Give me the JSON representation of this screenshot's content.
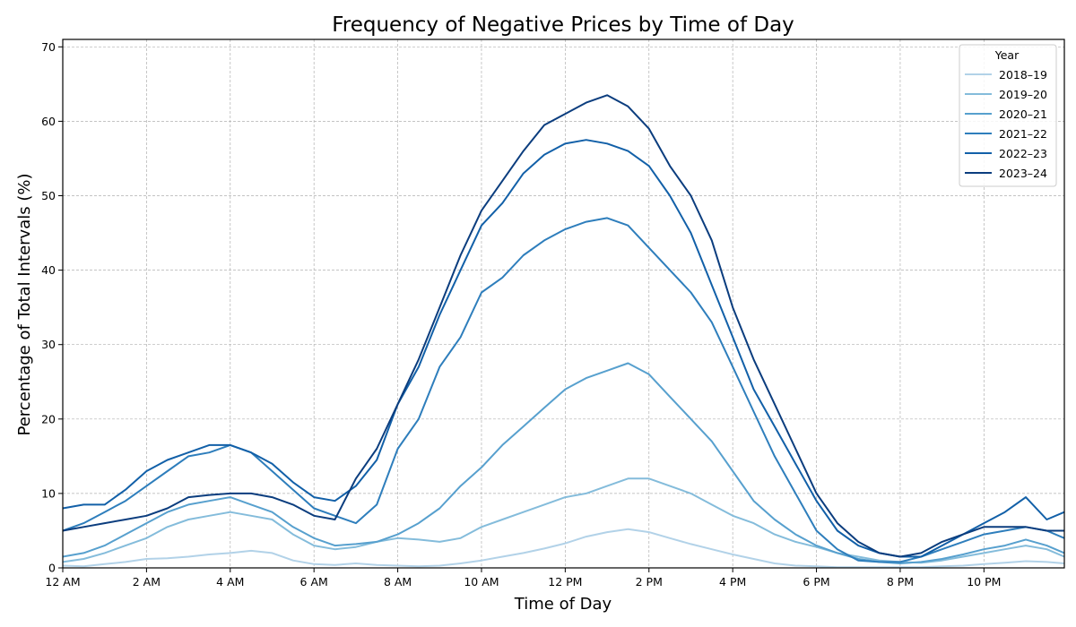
{
  "chart_data": {
    "type": "line",
    "title": "Frequency of Negative Prices by Time of Day",
    "xlabel": "Time of Day",
    "ylabel": "Percentage of Total Intervals (%)",
    "xlim": [
      0,
      23.92
    ],
    "ylim": [
      0,
      71
    ],
    "grid": true,
    "x_ticks": [
      {
        "value": 0,
        "label": "12 AM"
      },
      {
        "value": 2,
        "label": "2 AM"
      },
      {
        "value": 4,
        "label": "4 AM"
      },
      {
        "value": 6,
        "label": "6 AM"
      },
      {
        "value": 8,
        "label": "8 AM"
      },
      {
        "value": 10,
        "label": "10 AM"
      },
      {
        "value": 12,
        "label": "12 PM"
      },
      {
        "value": 14,
        "label": "2 PM"
      },
      {
        "value": 16,
        "label": "4 PM"
      },
      {
        "value": 18,
        "label": "6 PM"
      },
      {
        "value": 20,
        "label": "8 PM"
      },
      {
        "value": 22,
        "label": "10 PM"
      }
    ],
    "y_ticks": [
      0,
      10,
      20,
      30,
      40,
      50,
      60,
      70
    ],
    "legend": {
      "title": "Year",
      "placement": "top-right"
    },
    "x_unit": "hours since midnight",
    "x": [
      0,
      0.5,
      1,
      1.5,
      2,
      2.5,
      3,
      3.5,
      4,
      4.5,
      5,
      5.5,
      6,
      6.5,
      7,
      7.5,
      8,
      8.5,
      9,
      9.5,
      10,
      10.5,
      11,
      11.5,
      12,
      12.5,
      13,
      13.5,
      14,
      14.5,
      15,
      15.5,
      16,
      16.5,
      17,
      17.5,
      18,
      18.5,
      19,
      19.5,
      20,
      20.5,
      21,
      21.5,
      22,
      22.5,
      23,
      23.5,
      23.92
    ],
    "series": [
      {
        "name": "2018–19",
        "color": "#b2d2e8",
        "values": [
          0.3,
          0.2,
          0.5,
          0.8,
          1.2,
          1.3,
          1.5,
          1.8,
          2.0,
          2.3,
          2.0,
          1.0,
          0.5,
          0.4,
          0.6,
          0.4,
          0.3,
          0.2,
          0.3,
          0.6,
          1.0,
          1.5,
          2.0,
          2.6,
          3.3,
          4.2,
          4.8,
          5.2,
          4.8,
          4.0,
          3.2,
          2.5,
          1.8,
          1.2,
          0.6,
          0.3,
          0.2,
          0.1,
          0.1,
          0.1,
          0.1,
          0.1,
          0.2,
          0.3,
          0.5,
          0.7,
          0.9,
          0.8,
          0.6
        ]
      },
      {
        "name": "2019–20",
        "color": "#84bcdb",
        "values": [
          0.8,
          1.2,
          2.0,
          3.0,
          4.0,
          5.5,
          6.5,
          7.0,
          7.5,
          7.0,
          6.5,
          4.5,
          3.0,
          2.5,
          2.8,
          3.5,
          4.0,
          3.8,
          3.5,
          4.0,
          5.5,
          6.5,
          7.5,
          8.5,
          9.5,
          10.0,
          11.0,
          12.0,
          12.0,
          11.0,
          10.0,
          8.5,
          7.0,
          6.0,
          4.5,
          3.5,
          2.8,
          2.0,
          1.5,
          1.0,
          0.8,
          0.7,
          1.0,
          1.5,
          2.0,
          2.5,
          3.0,
          2.5,
          1.5
        ]
      },
      {
        "name": "2020–21",
        "color": "#57a0ce",
        "values": [
          1.5,
          2.0,
          3.0,
          4.5,
          6.0,
          7.5,
          8.5,
          9.0,
          9.5,
          8.5,
          7.5,
          5.5,
          4.0,
          3.0,
          3.2,
          3.5,
          4.5,
          6.0,
          8.0,
          11.0,
          13.5,
          16.5,
          19.0,
          21.5,
          24.0,
          25.5,
          26.5,
          27.5,
          26.0,
          23.0,
          20.0,
          17.0,
          13.0,
          9.0,
          6.5,
          4.5,
          3.0,
          2.0,
          1.2,
          0.8,
          0.6,
          0.8,
          1.2,
          1.8,
          2.5,
          3.0,
          3.8,
          3.0,
          2.0
        ]
      },
      {
        "name": "2021–22",
        "color": "#2e7ebc",
        "values": [
          5.0,
          6.0,
          7.5,
          9.0,
          11.0,
          13.0,
          15.0,
          15.5,
          16.5,
          15.5,
          13.0,
          10.5,
          8.0,
          7.0,
          6.0,
          8.5,
          16.0,
          20.0,
          27.0,
          31.0,
          37.0,
          39.0,
          42.0,
          44.0,
          45.5,
          46.5,
          47.0,
          46.0,
          43.0,
          40.0,
          37.0,
          33.0,
          27.0,
          21.0,
          15.0,
          10.0,
          5.0,
          2.5,
          1.0,
          0.8,
          0.8,
          1.5,
          2.5,
          3.5,
          4.5,
          5.0,
          5.5,
          5.0,
          4.0
        ]
      },
      {
        "name": "2022–23",
        "color": "#1260a8",
        "values": [
          8.0,
          8.5,
          8.5,
          10.5,
          13.0,
          14.5,
          15.5,
          16.5,
          16.5,
          15.5,
          14.0,
          11.5,
          9.5,
          9.0,
          11.0,
          14.5,
          22.0,
          27.0,
          34.0,
          40.0,
          46.0,
          49.0,
          53.0,
          55.5,
          57.0,
          57.5,
          57.0,
          56.0,
          54.0,
          50.0,
          45.0,
          38.0,
          31.0,
          24.0,
          19.0,
          14.0,
          9.0,
          5.0,
          3.0,
          2.0,
          1.5,
          1.5,
          3.0,
          4.5,
          6.0,
          7.5,
          9.5,
          6.5,
          7.5
        ]
      },
      {
        "name": "2023–24",
        "color": "#0b3d7e",
        "values": [
          5.0,
          5.5,
          6.0,
          6.5,
          7.0,
          8.0,
          9.5,
          9.8,
          10.0,
          10.0,
          9.5,
          8.5,
          7.0,
          6.5,
          12.0,
          16.0,
          22.0,
          28.0,
          35.0,
          42.0,
          48.0,
          52.0,
          56.0,
          59.5,
          61.0,
          62.5,
          63.5,
          62.0,
          59.0,
          54.0,
          50.0,
          44.0,
          35.0,
          28.0,
          22.0,
          16.0,
          10.0,
          6.0,
          3.5,
          2.0,
          1.5,
          2.0,
          3.5,
          4.5,
          5.5,
          5.5,
          5.5,
          5.0,
          5.0
        ]
      }
    ]
  }
}
